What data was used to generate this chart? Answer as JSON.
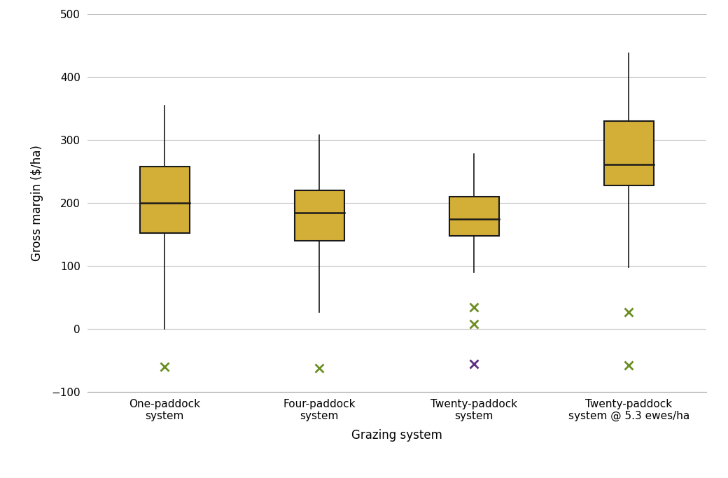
{
  "categories": [
    "One-paddock\nsystem",
    "Four-paddock\nsystem",
    "Twenty-paddock\nsystem",
    "Twenty-paddock\nsystem @ 5.3 ewes/ha"
  ],
  "boxes": [
    {
      "whisker_low": 0,
      "q1": 152,
      "median": 200,
      "q3": 258,
      "whisker_high": 355,
      "outliers_green": [
        -60
      ],
      "outliers_purple": []
    },
    {
      "whisker_low": 27,
      "q1": 140,
      "median": 185,
      "q3": 220,
      "whisker_high": 308,
      "outliers_green": [
        -62
      ],
      "outliers_purple": []
    },
    {
      "whisker_low": 90,
      "q1": 148,
      "median": 175,
      "q3": 210,
      "whisker_high": 278,
      "outliers_green": [
        8,
        35
      ],
      "outliers_purple": [
        -55
      ]
    },
    {
      "whisker_low": 98,
      "q1": 228,
      "median": 262,
      "q3": 330,
      "whisker_high": 438,
      "outliers_green": [
        -58,
        27
      ],
      "outliers_purple": []
    }
  ],
  "ylim": [
    -100,
    500
  ],
  "yticks": [
    -100,
    0,
    100,
    200,
    300,
    400,
    500
  ],
  "ylabel": "Gross margin ($/ha)",
  "xlabel": "Grazing system",
  "box_color": "#D4AF37",
  "box_edge_color": "#1a1a1a",
  "whisker_color": "#1a1a1a",
  "median_color": "#1a1a1a",
  "outlier_green": "#6B8E23",
  "outlier_purple": "#5B2D82",
  "background_color": "#ffffff",
  "grid_color": "#c8c8c8",
  "box_width": 0.32,
  "figsize": [
    10.4,
    6.83
  ],
  "dpi": 100
}
